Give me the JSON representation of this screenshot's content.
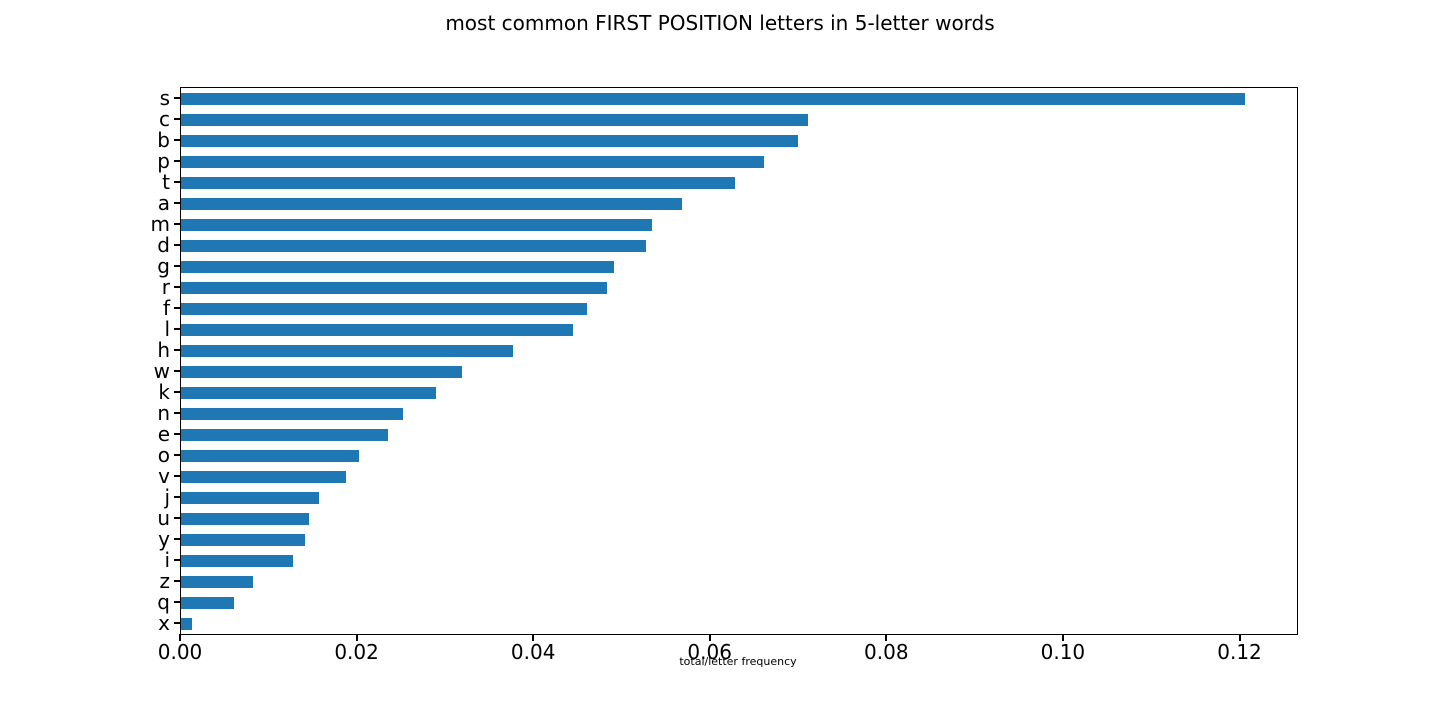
{
  "chart_data": {
    "type": "bar",
    "orientation": "horizontal",
    "title": "most common FIRST POSITION letters in 5-letter words",
    "xlabel": "total/letter frequency",
    "ylabel": "",
    "categories": [
      "s",
      "c",
      "b",
      "p",
      "t",
      "a",
      "m",
      "d",
      "g",
      "r",
      "f",
      "l",
      "h",
      "w",
      "k",
      "n",
      "e",
      "o",
      "v",
      "j",
      "u",
      "y",
      "i",
      "z",
      "q",
      "x"
    ],
    "values": [
      0.1205,
      0.071,
      0.0699,
      0.066,
      0.0628,
      0.0568,
      0.0534,
      0.0527,
      0.049,
      0.0483,
      0.046,
      0.0444,
      0.0376,
      0.0318,
      0.0289,
      0.0251,
      0.0234,
      0.0202,
      0.0187,
      0.0156,
      0.0145,
      0.014,
      0.0127,
      0.0081,
      0.006,
      0.0012
    ],
    "xlim": [
      0,
      0.1264
    ],
    "xtick_labels": [
      "0.00",
      "0.02",
      "0.04",
      "0.06",
      "0.08",
      "0.10",
      "0.12"
    ],
    "bar_color": "#1f77b4",
    "grid": false,
    "legend_position": "none"
  }
}
